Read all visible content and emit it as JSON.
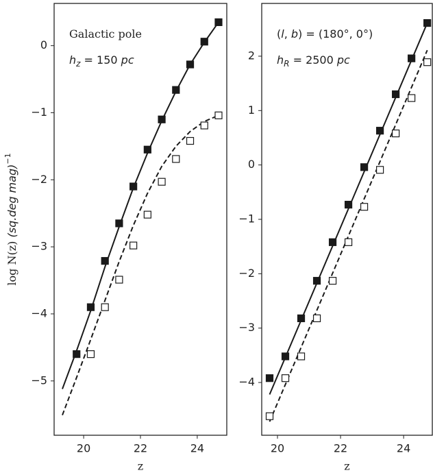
{
  "chart_data": [
    {
      "type": "line",
      "xlabel": "z",
      "ylabel": [
        "log N(z) ",
        "(sq.deg mag)",
        "−1"
      ],
      "annotations": [
        [
          "Galactic pole"
        ],
        [
          "h",
          "z",
          " = 150 ",
          "pc"
        ]
      ],
      "xlim": [
        18.96,
        25.04
      ],
      "ylim": [
        -5.81,
        0.63
      ],
      "xticks": [
        20,
        22,
        24
      ],
      "yticks": [
        0,
        {
          "value": -1,
          "label": "−1"
        },
        {
          "value": -2,
          "label": "−2"
        },
        {
          "value": -3,
          "label": "−3"
        },
        {
          "value": -4,
          "label": "−4"
        },
        {
          "value": -5,
          "label": "−5"
        }
      ],
      "series": [
        {
          "style": "solid",
          "color": "#1a1a1a",
          "x": [
            19.25,
            19.75,
            20.25,
            20.75,
            21.25,
            21.75,
            22.25,
            22.75,
            23.25,
            23.75,
            24.25,
            24.75
          ],
          "values": [
            -5.12,
            -4.55,
            -3.95,
            -3.3,
            -2.7,
            -2.12,
            -1.6,
            -1.12,
            -0.68,
            -0.28,
            0.05,
            0.35
          ]
        },
        {
          "style": "dashed",
          "color": "#1a1a1a",
          "x": [
            19.25,
            19.75,
            20.25,
            20.75,
            21.25,
            21.75,
            22.25,
            22.75,
            23.25,
            23.75,
            24.25,
            24.75
          ],
          "values": [
            -5.51,
            -4.95,
            -4.38,
            -3.8,
            -3.22,
            -2.68,
            -2.2,
            -1.8,
            -1.5,
            -1.28,
            -1.13,
            -1.04
          ]
        },
        {
          "style": "square-filled",
          "color": "#1a1a1a",
          "x": [
            19.75,
            20.25,
            20.75,
            21.25,
            21.75,
            22.25,
            22.75,
            23.25,
            23.75,
            24.25,
            24.75
          ],
          "values": [
            -4.6,
            -3.9,
            -3.21,
            -2.65,
            -2.1,
            -1.55,
            -1.1,
            -0.66,
            -0.28,
            0.06,
            0.35
          ]
        },
        {
          "style": "square-open",
          "color": "#1a1a1a",
          "x": [
            20.25,
            20.75,
            21.25,
            21.75,
            22.25,
            22.75,
            23.25,
            23.75,
            24.25,
            24.75
          ],
          "values": [
            -4.6,
            -3.9,
            -3.49,
            -2.98,
            -2.52,
            -2.03,
            -1.69,
            -1.42,
            -1.19,
            -1.04
          ]
        }
      ]
    },
    {
      "type": "line",
      "xlabel": "z",
      "annotations": [
        [
          "(",
          "l",
          ", ",
          "b",
          ") = (180°, 0°)"
        ],
        [
          "h",
          "R",
          " = 2500 ",
          "pc"
        ]
      ],
      "xlim": [
        19.5,
        24.91
      ],
      "ylim": [
        -4.97,
        2.97
      ],
      "xticks": [
        20,
        22,
        24
      ],
      "yticks": [
        2,
        1,
        0,
        {
          "value": -1,
          "label": "−1"
        },
        {
          "value": -2,
          "label": "−2"
        },
        {
          "value": -3,
          "label": "−3"
        },
        {
          "value": -4,
          "label": "−4"
        }
      ],
      "series": [
        {
          "style": "solid",
          "color": "#1a1a1a",
          "x": [
            19.75,
            24.75
          ],
          "values": [
            -4.22,
            2.61
          ]
        },
        {
          "style": "dashed",
          "color": "#1a1a1a",
          "x": [
            19.75,
            24.75
          ],
          "values": [
            -4.72,
            2.11
          ]
        },
        {
          "style": "square-filled",
          "color": "#1a1a1a",
          "x": [
            19.75,
            20.25,
            20.75,
            21.25,
            21.75,
            22.25,
            22.75,
            23.25,
            23.75,
            24.25,
            24.75
          ],
          "values": [
            -3.92,
            -3.52,
            -2.82,
            -2.13,
            -1.42,
            -0.73,
            -0.04,
            0.63,
            1.3,
            1.96,
            2.61
          ]
        },
        {
          "style": "square-open",
          "color": "#1a1a1a",
          "x": [
            19.75,
            20.25,
            20.75,
            21.25,
            21.75,
            22.25,
            22.75,
            23.25,
            23.75,
            24.25,
            24.75
          ],
          "values": [
            -4.62,
            -3.92,
            -3.52,
            -2.82,
            -2.13,
            -1.42,
            -0.77,
            -0.09,
            0.58,
            1.23,
            1.89
          ]
        }
      ]
    }
  ]
}
